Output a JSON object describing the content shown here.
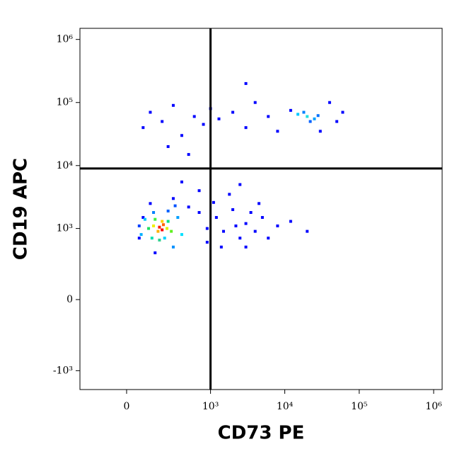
{
  "chart_data": {
    "type": "scatter",
    "scale": "biexponential",
    "x_label": "CD73 PE",
    "y_label": "CD19 APC",
    "xlim": [
      -300,
      1300000
    ],
    "ylim": [
      -2000,
      1500000
    ],
    "xticks": [
      {
        "value": 0,
        "label": "0"
      },
      {
        "value": 1000,
        "label": "10³"
      },
      {
        "value": 10000,
        "label": "10⁴"
      },
      {
        "value": 100000,
        "label": "10⁵"
      },
      {
        "value": 1000000,
        "label": "10⁶"
      }
    ],
    "yticks": [
      {
        "value": -1000,
        "label": "-10³"
      },
      {
        "value": 0,
        "label": "0"
      },
      {
        "value": 1000,
        "label": "10³"
      },
      {
        "value": 10000,
        "label": "10⁴"
      },
      {
        "value": 100000,
        "label": "10⁵"
      },
      {
        "value": 1000000,
        "label": "10⁶"
      }
    ],
    "quadrant": {
      "x": 1000,
      "y": 9000,
      "color": "#000000"
    },
    "x": [
      60,
      80,
      120,
      150,
      300,
      500,
      700,
      900,
      1200,
      1500,
      2000,
      2500,
      3000,
      3500,
      4000,
      5000,
      6000,
      8000,
      12000,
      20000,
      1800,
      2500,
      400,
      700,
      1100,
      1400,
      2200,
      3000,
      4500,
      900,
      80,
      120,
      200,
      300,
      400,
      600,
      800,
      1000,
      1300,
      2000,
      3000,
      4000,
      6000,
      8000,
      40000,
      50000,
      30000,
      3000,
      500,
      250,
      12000,
      60000,
      15000,
      20000,
      25000,
      18000,
      22000,
      28000,
      70,
      90,
      140,
      220,
      250,
      350,
      400,
      300,
      60,
      320,
      110,
      150,
      250,
      280,
      180,
      130,
      140,
      200,
      240,
      170,
      180,
      210,
      200
    ],
    "y": [
      700,
      1500,
      2500,
      400,
      3000,
      2200,
      1800,
      600,
      1500,
      900,
      2000,
      700,
      1200,
      1800,
      900,
      1500,
      700,
      1100,
      1300,
      900,
      3500,
      5000,
      5500,
      4000,
      2600,
      500,
      1100,
      500,
      2500,
      1000,
      40000,
      70000,
      50000,
      90000,
      30000,
      60000,
      45000,
      80000,
      55000,
      70000,
      40000,
      100000,
      60000,
      35000,
      100000,
      50000,
      35000,
      200000,
      15000,
      20000,
      75000,
      70000,
      65000,
      60000,
      55000,
      70000,
      50000,
      62000,
      800,
      1400,
      1800,
      700,
      1900,
      1500,
      800,
      500,
      1100,
      2300,
      1000,
      1400,
      1300,
      900,
      650,
      700,
      1100,
      1300,
      1000,
      900,
      1050,
      1150,
      950
    ],
    "colors": [
      "#0000ff",
      "#0000ff",
      "#0000ff",
      "#0000ff",
      "#0000ff",
      "#0000ff",
      "#0000ff",
      "#0000ff",
      "#0000ff",
      "#0000ff",
      "#0000ff",
      "#0000ff",
      "#0000ff",
      "#0000ff",
      "#0000ff",
      "#0000ff",
      "#0000ff",
      "#0000ff",
      "#0000ff",
      "#0000ff",
      "#0000ff",
      "#0000ff",
      "#0000ff",
      "#0000ff",
      "#0000ff",
      "#0000ff",
      "#0000ff",
      "#0000ff",
      "#0000ff",
      "#0000ff",
      "#0000ff",
      "#0000ff",
      "#0000ff",
      "#0000ff",
      "#0000ff",
      "#0000ff",
      "#0000ff",
      "#0000ff",
      "#0000ff",
      "#0000ff",
      "#0000ff",
      "#0000ff",
      "#0000ff",
      "#0000ff",
      "#0000ff",
      "#0000ff",
      "#0000ff",
      "#0000ff",
      "#0000ff",
      "#0000ff",
      "#0000ff",
      "#0000ff",
      "#00c8ff",
      "#20e0e0",
      "#00a0ff",
      "#0080ff",
      "#0060ff",
      "#0070ff",
      "#00b0ff",
      "#00c8ff",
      "#0080ff",
      "#00d0ff",
      "#0060ff",
      "#00a0ff",
      "#00e0ff",
      "#0090ff",
      "#0040ff",
      "#0050ff",
      "#20e060",
      "#40f040",
      "#00e080",
      "#60f020",
      "#30d090",
      "#00e0b0",
      "#f0f000",
      "#ffd000",
      "#e0f000",
      "#ffb000",
      "#ff2000",
      "#ff6000",
      "#ff0000"
    ]
  }
}
